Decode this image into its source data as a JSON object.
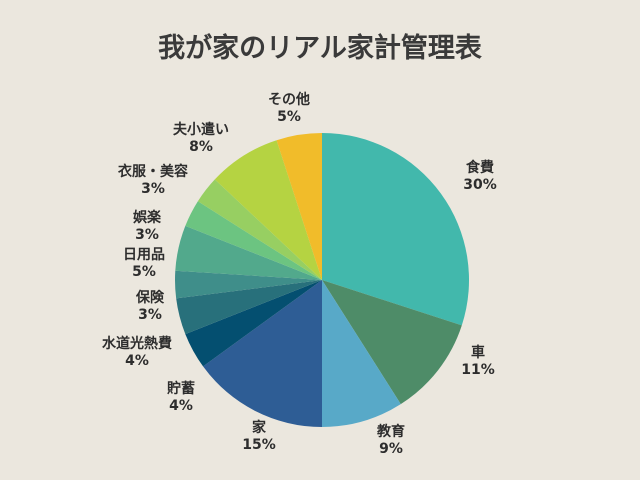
{
  "chart_data": {
    "type": "pie",
    "title": "我が家のリアル家計管理表",
    "slices": [
      {
        "label": "食費",
        "percent_label": "30%",
        "value": 30,
        "color": "#42b8ac"
      },
      {
        "label": "車",
        "percent_label": "11%",
        "value": 11,
        "color": "#4e8c68"
      },
      {
        "label": "教育",
        "percent_label": "9%",
        "value": 9,
        "color": "#58a9c8"
      },
      {
        "label": "家",
        "percent_label": "15%",
        "value": 15,
        "color": "#2e5d95"
      },
      {
        "label": "貯蓄",
        "percent_label": "4%",
        "value": 4,
        "color": "#044f70"
      },
      {
        "label": "水道光熱費",
        "percent_label": "4%",
        "value": 4,
        "color": "#28707b"
      },
      {
        "label": "保険",
        "percent_label": "3%",
        "value": 3,
        "color": "#3f8e8a"
      },
      {
        "label": "日用品",
        "percent_label": "5%",
        "value": 5,
        "color": "#52a98c"
      },
      {
        "label": "娯楽",
        "percent_label": "3%",
        "value": 3,
        "color": "#6cc481"
      },
      {
        "label": "衣服・美容",
        "percent_label": "3%",
        "value": 3,
        "color": "#97cf62"
      },
      {
        "label": "夫小遣い",
        "percent_label": "8%",
        "value": 8,
        "color": "#b5d342"
      },
      {
        "label": "その他",
        "percent_label": "5%",
        "value": 5,
        "color": "#f1bc2a"
      }
    ],
    "legend": "none"
  }
}
